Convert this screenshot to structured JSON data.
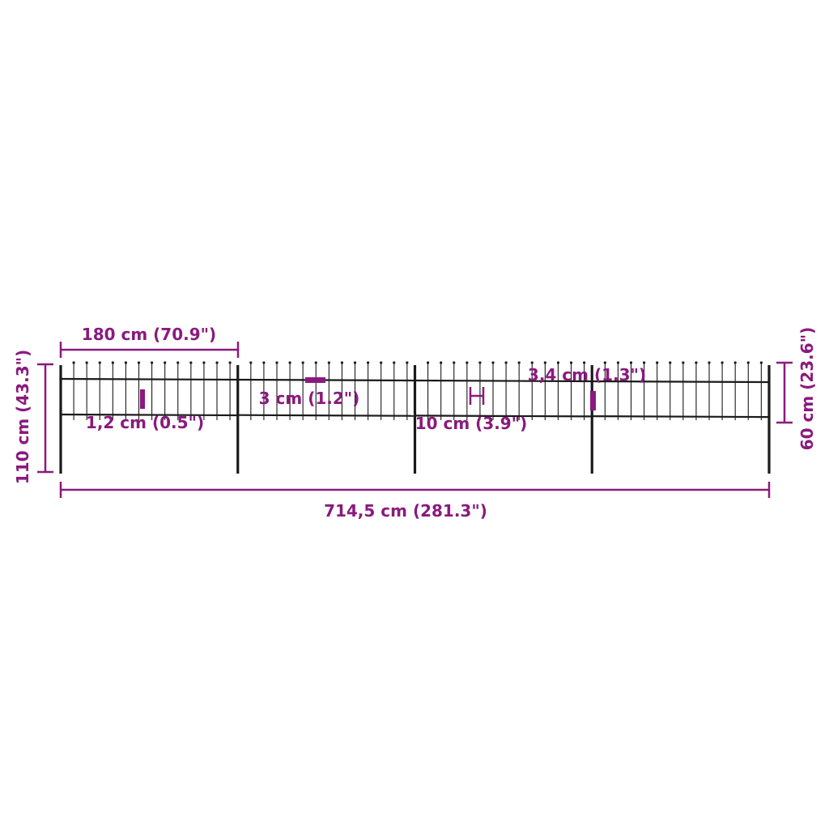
{
  "colors": {
    "dimension": "#8a1a7e",
    "fence": "#1a1a1a"
  },
  "dimensions": {
    "panel_width": "180 cm (70.9\")",
    "total_height": "110 cm (43.3\")",
    "fence_height": "60 cm (23.6\")",
    "total_length": "714,5 cm (281.3\")",
    "picket_diameter": "1,2 cm (0.5\")",
    "rail_width": "3 cm (1.2\")",
    "picket_spacing": "10 cm (3.9\")",
    "post_diameter": "3,4 cm (1.3\")"
  },
  "fence": {
    "panels": 4,
    "posts": 5
  }
}
